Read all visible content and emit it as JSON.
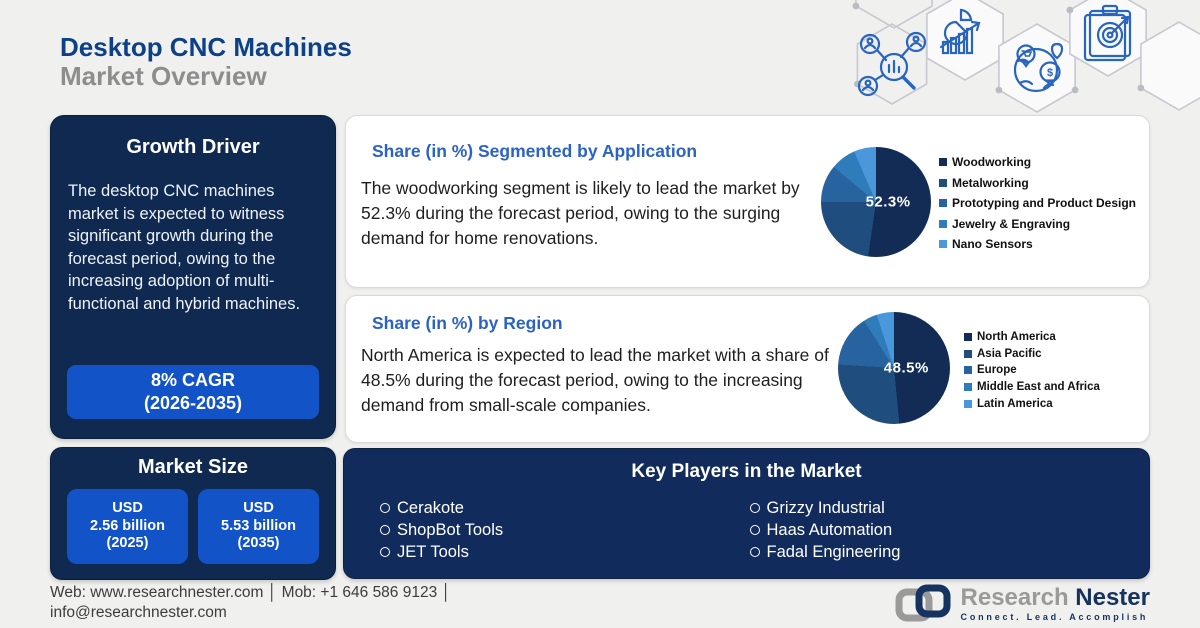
{
  "theme": {
    "page_bg": "#f0f0ee",
    "navy_panel": "#0f2950",
    "bright_blue": "#1254c8",
    "title_blue": "#0c4187",
    "panel_title_blue": "#2a63c3",
    "icon_blue": "#2765c0"
  },
  "header": {
    "title": "Desktop CNC Machines",
    "subtitle": "Market Overview"
  },
  "decor_icons": [
    "audience-research-icon",
    "growth-analytics-icon",
    "global-market-icon",
    "market-target-icon"
  ],
  "growth_driver": {
    "heading": "Growth Driver",
    "body": "The desktop CNC machines market is expected to witness significant growth during the forecast period, owing to the increasing adoption of multi-functional and hybrid machines.",
    "cagr_line1": "8% CAGR",
    "cagr_line2": "(2026-2035)"
  },
  "market_size": {
    "heading": "Market Size",
    "tiles": [
      {
        "line1": "USD",
        "line2": "2.56 billion",
        "line3": "(2025)"
      },
      {
        "line1": "USD",
        "line2": "5.53 billion",
        "line3": "(2035)"
      }
    ]
  },
  "application_share": {
    "title": "Share (in %) Segmented by Application",
    "body": "The woodworking segment is likely to lead the market by 52.3% during the forecast period, owing to the surging demand for home renovations."
  },
  "region_share": {
    "title": "Share (in %) by Region",
    "body": "North America is expected to lead the market with a share of 48.5% during the forecast period, owing to the increasing demand from small-scale companies."
  },
  "key_players": {
    "heading": "Key Players in the Market",
    "column1": [
      "Cerakote",
      "ShopBot Tools",
      "JET Tools"
    ],
    "column2": [
      "Grizzy Industrial",
      "Haas Automation",
      "Fadal Engineering"
    ]
  },
  "footer": {
    "contact_line1": "Web: www.researchnester.com │ Mob: +1 646 586 9123 │",
    "contact_line2": "info@researchnester.com",
    "brand_gray": "Research",
    "brand_navy": "Nester",
    "tagline": "Connect. Lead. Accomplish"
  },
  "chart_data": [
    {
      "type": "pie",
      "title": "Share (in %) Segmented by Application",
      "highlight_label": "52.3%",
      "categories": [
        "Woodworking",
        "Metalworking",
        "Prototyping and Product Design",
        "Jewelry & Engraving",
        "Nano Sensors"
      ],
      "values": [
        52.3,
        22.7,
        11,
        7.5,
        6.5
      ],
      "colors": [
        "#122c55",
        "#1f4e7e",
        "#27639e",
        "#2f7cba",
        "#4a97dc"
      ],
      "legend_position": "right",
      "start_angle_deg": 0,
      "direction": "clockwise"
    },
    {
      "type": "pie",
      "title": "Share (in %) by Region",
      "highlight_label": "48.5%",
      "categories": [
        "North America",
        "Asia Pacific",
        "Europe",
        "Middle East and Africa",
        "Latin America"
      ],
      "values": [
        48.5,
        27.5,
        15,
        4,
        5
      ],
      "colors": [
        "#122c55",
        "#1f4e7e",
        "#27639e",
        "#2f7cba",
        "#4a97dc"
      ],
      "legend_position": "right",
      "start_angle_deg": 0,
      "direction": "clockwise"
    }
  ]
}
